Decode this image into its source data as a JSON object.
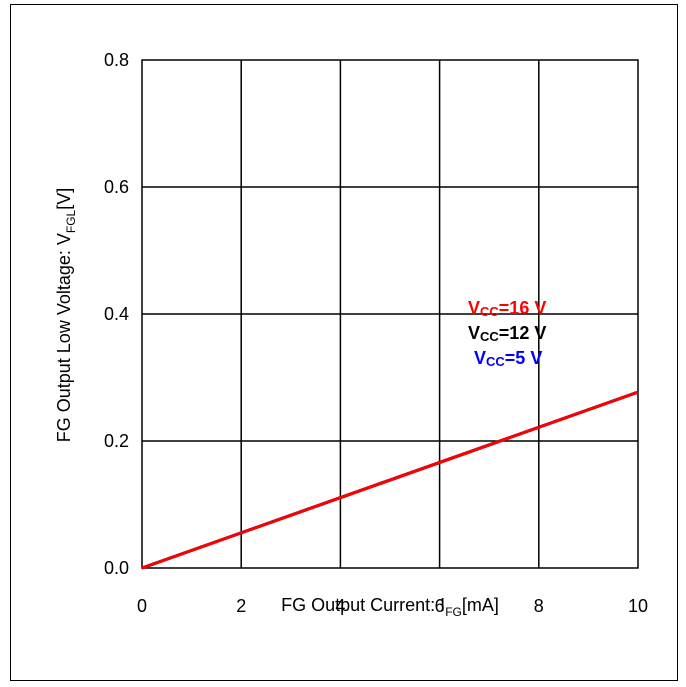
{
  "chart_data": {
    "type": "line",
    "xlabel": {
      "main": "FG Output Current: I",
      "sub": "FG",
      "tail": "[mA]"
    },
    "ylabel": {
      "main": "FG Output Low Voltage: V",
      "sub": "FGL",
      "tail": "[V]"
    },
    "xlim": [
      0,
      10
    ],
    "ylim": [
      0,
      0.8
    ],
    "xticks": [
      "0",
      "2",
      "4",
      "6",
      "8",
      "10"
    ],
    "yticks": [
      "0.0",
      "0.2",
      "0.4",
      "0.6",
      "0.8"
    ],
    "grid": true,
    "legend_position": "center-right",
    "series": [
      {
        "name": "VCC=16 V",
        "label": {
          "v": "V",
          "sub": "CC",
          "rest": "=16 V"
        },
        "color": "#ff0000",
        "x": [
          0,
          10
        ],
        "y": [
          0,
          0.277
        ]
      },
      {
        "name": "VCC=12 V",
        "label": {
          "v": "V",
          "sub": "CC",
          "rest": "=12 V"
        },
        "color": "#000000",
        "x": [
          0,
          10
        ],
        "y": [
          0,
          0.277
        ]
      },
      {
        "name": "VCC=5 V",
        "label": {
          "v": "V",
          "sub": "CC",
          "rest": "=5 V"
        },
        "color": "#0000ff",
        "x": [
          0,
          10
        ],
        "y": [
          0,
          0.277
        ]
      }
    ]
  }
}
